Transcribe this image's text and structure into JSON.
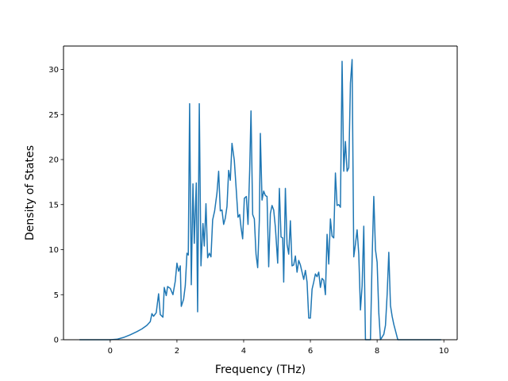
{
  "chart_data": {
    "type": "line",
    "title": "",
    "xlabel": "Frequency (THz)",
    "ylabel": "Density of States",
    "xlim": [
      -1.4,
      10.4
    ],
    "ylim": [
      0,
      32.6
    ],
    "xticks": [
      0,
      2,
      4,
      6,
      8,
      10
    ],
    "yticks": [
      0,
      5,
      10,
      15,
      20,
      25,
      30
    ],
    "grid": false,
    "legend": "none",
    "series": [
      {
        "color": "#1f77b4",
        "points": [
          [
            -0.92,
            0
          ],
          [
            -0.5,
            0
          ],
          [
            0,
            0
          ],
          [
            0.2,
            0.05
          ],
          [
            0.4,
            0.25
          ],
          [
            0.6,
            0.55
          ],
          [
            0.8,
            0.9
          ],
          [
            0.95,
            1.2
          ],
          [
            1.1,
            1.6
          ],
          [
            1.2,
            2.0
          ],
          [
            1.25,
            2.9
          ],
          [
            1.3,
            2.6
          ],
          [
            1.38,
            3.0
          ],
          [
            1.45,
            5.1
          ],
          [
            1.5,
            2.8
          ],
          [
            1.58,
            2.5
          ],
          [
            1.62,
            5.8
          ],
          [
            1.68,
            4.9
          ],
          [
            1.72,
            5.9
          ],
          [
            1.8,
            5.7
          ],
          [
            1.88,
            5.0
          ],
          [
            1.95,
            6.5
          ],
          [
            2.0,
            8.5
          ],
          [
            2.05,
            7.6
          ],
          [
            2.1,
            8.2
          ],
          [
            2.13,
            3.7
          ],
          [
            2.2,
            4.5
          ],
          [
            2.25,
            6.0
          ],
          [
            2.3,
            9.6
          ],
          [
            2.34,
            9.4
          ],
          [
            2.38,
            26.2
          ],
          [
            2.43,
            6.1
          ],
          [
            2.48,
            17.3
          ],
          [
            2.52,
            10.7
          ],
          [
            2.58,
            17.4
          ],
          [
            2.62,
            3.1
          ],
          [
            2.67,
            26.2
          ],
          [
            2.72,
            8.2
          ],
          [
            2.78,
            12.9
          ],
          [
            2.82,
            10.4
          ],
          [
            2.87,
            15.1
          ],
          [
            2.92,
            9.1
          ],
          [
            2.97,
            9.6
          ],
          [
            3.02,
            9.2
          ],
          [
            3.07,
            13.3
          ],
          [
            3.13,
            14.3
          ],
          [
            3.2,
            16.3
          ],
          [
            3.25,
            18.7
          ],
          [
            3.3,
            14.3
          ],
          [
            3.35,
            14.4
          ],
          [
            3.4,
            12.8
          ],
          [
            3.45,
            13.5
          ],
          [
            3.5,
            14.8
          ],
          [
            3.55,
            18.8
          ],
          [
            3.6,
            17.7
          ],
          [
            3.65,
            21.8
          ],
          [
            3.72,
            19.9
          ],
          [
            3.78,
            16.5
          ],
          [
            3.83,
            13.6
          ],
          [
            3.88,
            13.9
          ],
          [
            3.92,
            12.5
          ],
          [
            3.97,
            11.2
          ],
          [
            4.02,
            15.7
          ],
          [
            4.08,
            15.9
          ],
          [
            4.13,
            12.8
          ],
          [
            4.18,
            18.8
          ],
          [
            4.22,
            25.4
          ],
          [
            4.27,
            13.9
          ],
          [
            4.32,
            13.4
          ],
          [
            4.37,
            9.5
          ],
          [
            4.42,
            8.0
          ],
          [
            4.47,
            13.3
          ],
          [
            4.5,
            22.9
          ],
          [
            4.55,
            15.5
          ],
          [
            4.6,
            16.5
          ],
          [
            4.65,
            16.0
          ],
          [
            4.7,
            15.9
          ],
          [
            4.75,
            8.1
          ],
          [
            4.8,
            14.0
          ],
          [
            4.85,
            14.9
          ],
          [
            4.9,
            14.4
          ],
          [
            4.95,
            12.5
          ],
          [
            5.02,
            8.5
          ],
          [
            5.07,
            16.8
          ],
          [
            5.12,
            11.4
          ],
          [
            5.17,
            11.3
          ],
          [
            5.2,
            6.4
          ],
          [
            5.25,
            16.8
          ],
          [
            5.3,
            10.6
          ],
          [
            5.35,
            9.5
          ],
          [
            5.4,
            13.2
          ],
          [
            5.45,
            8.2
          ],
          [
            5.5,
            8.3
          ],
          [
            5.55,
            9.3
          ],
          [
            5.6,
            7.5
          ],
          [
            5.65,
            8.8
          ],
          [
            5.7,
            8.3
          ],
          [
            5.75,
            7.5
          ],
          [
            5.8,
            6.7
          ],
          [
            5.85,
            7.7
          ],
          [
            5.9,
            6.4
          ],
          [
            5.95,
            2.4
          ],
          [
            6.0,
            2.4
          ],
          [
            6.05,
            5.6
          ],
          [
            6.1,
            6.4
          ],
          [
            6.15,
            7.3
          ],
          [
            6.2,
            7.0
          ],
          [
            6.25,
            7.5
          ],
          [
            6.3,
            5.8
          ],
          [
            6.35,
            6.8
          ],
          [
            6.4,
            6.6
          ],
          [
            6.45,
            5.0
          ],
          [
            6.5,
            11.7
          ],
          [
            6.55,
            8.4
          ],
          [
            6.6,
            13.4
          ],
          [
            6.65,
            11.5
          ],
          [
            6.7,
            11.3
          ],
          [
            6.75,
            18.5
          ],
          [
            6.8,
            14.9
          ],
          [
            6.85,
            15.0
          ],
          [
            6.9,
            14.7
          ],
          [
            6.95,
            30.9
          ],
          [
            7.0,
            18.7
          ],
          [
            7.05,
            22.0
          ],
          [
            7.1,
            18.7
          ],
          [
            7.15,
            19.1
          ],
          [
            7.2,
            28.5
          ],
          [
            7.25,
            31.1
          ],
          [
            7.3,
            9.2
          ],
          [
            7.35,
            10.6
          ],
          [
            7.4,
            12.2
          ],
          [
            7.45,
            9.5
          ],
          [
            7.5,
            3.3
          ],
          [
            7.55,
            6.0
          ],
          [
            7.6,
            12.6
          ],
          [
            7.65,
            0
          ],
          [
            7.7,
            0
          ],
          [
            7.75,
            0
          ],
          [
            7.8,
            0
          ],
          [
            7.85,
            9.0
          ],
          [
            7.9,
            15.9
          ],
          [
            7.95,
            10.0
          ],
          [
            8.0,
            8.6
          ],
          [
            8.05,
            3.0
          ],
          [
            8.1,
            0
          ],
          [
            8.2,
            0.6
          ],
          [
            8.25,
            1.6
          ],
          [
            8.3,
            5.0
          ],
          [
            8.35,
            9.7
          ],
          [
            8.4,
            3.8
          ],
          [
            8.45,
            2.6
          ],
          [
            8.5,
            1.7
          ],
          [
            8.55,
            1.0
          ],
          [
            8.62,
            0
          ],
          [
            9.0,
            0
          ],
          [
            9.5,
            0
          ],
          [
            9.92,
            0
          ]
        ]
      }
    ]
  }
}
